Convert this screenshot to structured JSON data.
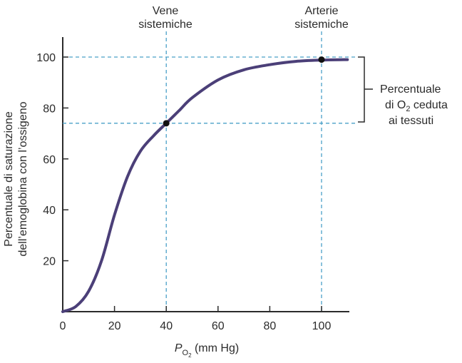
{
  "chart_data": {
    "type": "line",
    "x_unit_prefix": "P",
    "x_unit_sub": "O",
    "x_unit_sub2": "2",
    "xlabel_suffix": " (mm Hg)",
    "ylabel_line1": "Percentuale di saturazione",
    "ylabel_line2": "dell’emoglobina con l’ossigeno",
    "xlim": [
      0,
      110
    ],
    "ylim": [
      0,
      108
    ],
    "x_ticks": [
      0,
      20,
      40,
      60,
      80,
      100
    ],
    "y_ticks": [
      20,
      40,
      60,
      80,
      100
    ],
    "series": [
      {
        "color": "#4b3f78",
        "x": [
          0,
          5,
          10,
          15,
          20,
          25,
          30,
          35,
          40,
          45,
          50,
          60,
          70,
          80,
          90,
          100,
          110
        ],
        "y": [
          0,
          2,
          8,
          20,
          38,
          53,
          63,
          69,
          74,
          79,
          84,
          91,
          95,
          97,
          98.3,
          98.8,
          99
        ]
      }
    ],
    "points": [
      {
        "x": 40,
        "y": 74
      },
      {
        "x": 100,
        "y": 99
      }
    ],
    "ref_lines": {
      "vertical": [
        40,
        100
      ],
      "horizontal": [
        100,
        74
      ],
      "color": "#4aa0c8"
    },
    "annotations": {
      "vene": [
        "Vene",
        "sistemiche"
      ],
      "arterie": [
        "Arterie",
        "sistemiche"
      ],
      "bracket": [
        "Percentuale",
        "di O",
        "2",
        " ceduta",
        "ai tessuti"
      ]
    }
  }
}
